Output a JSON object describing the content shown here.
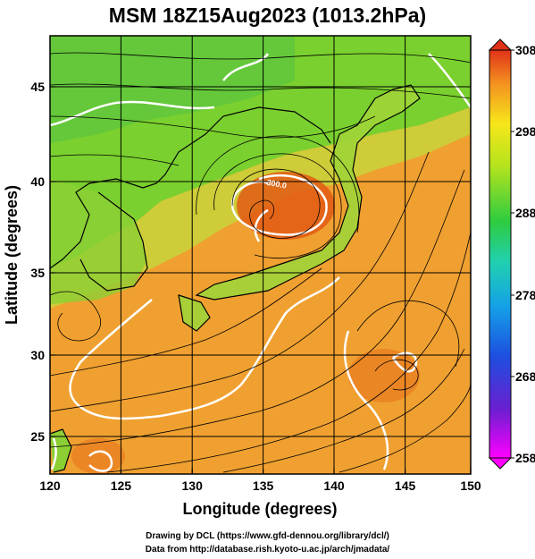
{
  "title": "MSM 18Z15Aug2023 (1013.2hPa)",
  "x_axis": {
    "label": "Longitude (degrees)",
    "ticks": [
      "120",
      "125",
      "130",
      "135",
      "140",
      "145",
      "150"
    ],
    "range": [
      120,
      150
    ]
  },
  "y_axis": {
    "label": "Latitude  (degrees)",
    "ticks": [
      "25",
      "30",
      "35",
      "40",
      "45"
    ],
    "range": [
      22.4,
      47.6
    ]
  },
  "colorbar": {
    "ticks": [
      "308",
      "298",
      "288",
      "278",
      "268",
      "258"
    ],
    "range": [
      258,
      308
    ]
  },
  "credits": {
    "line1": "Drawing by DCL (https://www.gfd-dennou.org/library/dcl/)",
    "line2": "Data from http://database.rish.kyoto-u.ac.jp/arch/jmadata/"
  },
  "colors": {
    "land_field": "#7ad02e",
    "sea_field": "#f0a030",
    "warm_core": "#e25a14",
    "contour": "#ffffff",
    "streamline": "#000000"
  },
  "contour_labels": [
    "300.0"
  ]
}
